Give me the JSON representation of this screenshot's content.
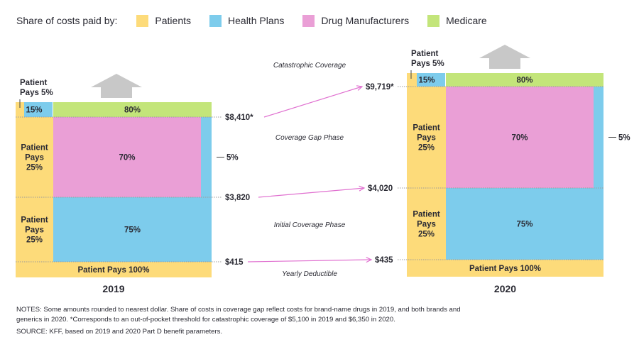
{
  "legend": {
    "title": "Share of costs paid by:",
    "items": [
      {
        "key": "patients",
        "label": "Patients",
        "color": "#fddb7a"
      },
      {
        "key": "plans",
        "label": "Health Plans",
        "color": "#7dccec"
      },
      {
        "key": "manufacturers",
        "label": "Drug Manufacturers",
        "color": "#ea9fd6"
      },
      {
        "key": "medicare",
        "label": "Medicare",
        "color": "#c3e57a"
      }
    ]
  },
  "chart_data": {
    "type": "table",
    "title": "Share of costs paid by: Patients, Health Plans, Drug Manufacturers, Medicare",
    "years": [
      {
        "year": "2019",
        "thresholds": {
          "deductible": "$415",
          "initial_coverage_limit": "$3,820",
          "catastrophic": "$8,410*"
        },
        "phases": [
          {
            "phase": "Catastrophic Coverage",
            "shares": {
              "patients": 5,
              "plans": 15,
              "medicare": 80
            },
            "labels": {
              "patients": "Patient Pays 5%",
              "plans": "15%",
              "medicare": "80%"
            }
          },
          {
            "phase": "Coverage Gap Phase",
            "shares": {
              "patients": 25,
              "manufacturers": 70,
              "plans": 5
            },
            "labels": {
              "patients": "Patient Pays 25%",
              "manufacturers": "70%",
              "plans": "5%"
            }
          },
          {
            "phase": "Initial Coverage Phase",
            "shares": {
              "patients": 25,
              "plans": 75
            },
            "labels": {
              "patients": "Patient Pays 25%",
              "plans": "75%"
            }
          },
          {
            "phase": "Yearly Deductible",
            "shares": {
              "patients": 100
            },
            "labels": {
              "patients": "Patient Pays 100%"
            }
          }
        ]
      },
      {
        "year": "2020",
        "thresholds": {
          "deductible": "$435",
          "initial_coverage_limit": "$4,020",
          "catastrophic": "$9,719*"
        },
        "phases": [
          {
            "phase": "Catastrophic Coverage",
            "shares": {
              "patients": 5,
              "plans": 15,
              "medicare": 80
            },
            "labels": {
              "patients": "Patient Pays 5%",
              "plans": "15%",
              "medicare": "80%"
            }
          },
          {
            "phase": "Coverage Gap Phase",
            "shares": {
              "patients": 25,
              "manufacturers": 70,
              "plans": 5
            },
            "labels": {
              "patients": "Patient Pays 25%",
              "manufacturers": "70%",
              "plans": "5%"
            }
          },
          {
            "phase": "Initial Coverage Phase",
            "shares": {
              "patients": 25,
              "plans": 75
            },
            "labels": {
              "patients": "Patient Pays 25%",
              "plans": "75%"
            }
          },
          {
            "phase": "Yearly Deductible",
            "shares": {
              "patients": 100
            },
            "labels": {
              "patients": "Patient Pays 100%"
            }
          }
        ]
      }
    ],
    "phase_labels": [
      "Catastrophic Coverage",
      "Coverage Gap Phase",
      "Initial Coverage Phase",
      "Yearly Deductible"
    ],
    "arrow_color": "#e070d0"
  },
  "notes": {
    "notes": "NOTES: Some amounts rounded to nearest dollar. Share of costs in coverage gap reflect costs for brand-name drugs in 2019, and both brands and generics in 2020. *Corresponds to an out-of-pocket threshold for catastrophic coverage of $5,100 in 2019 and $6,350 in 2020.",
    "source": "SOURCE: KFF, based on 2019 and 2020 Part D benefit parameters."
  }
}
